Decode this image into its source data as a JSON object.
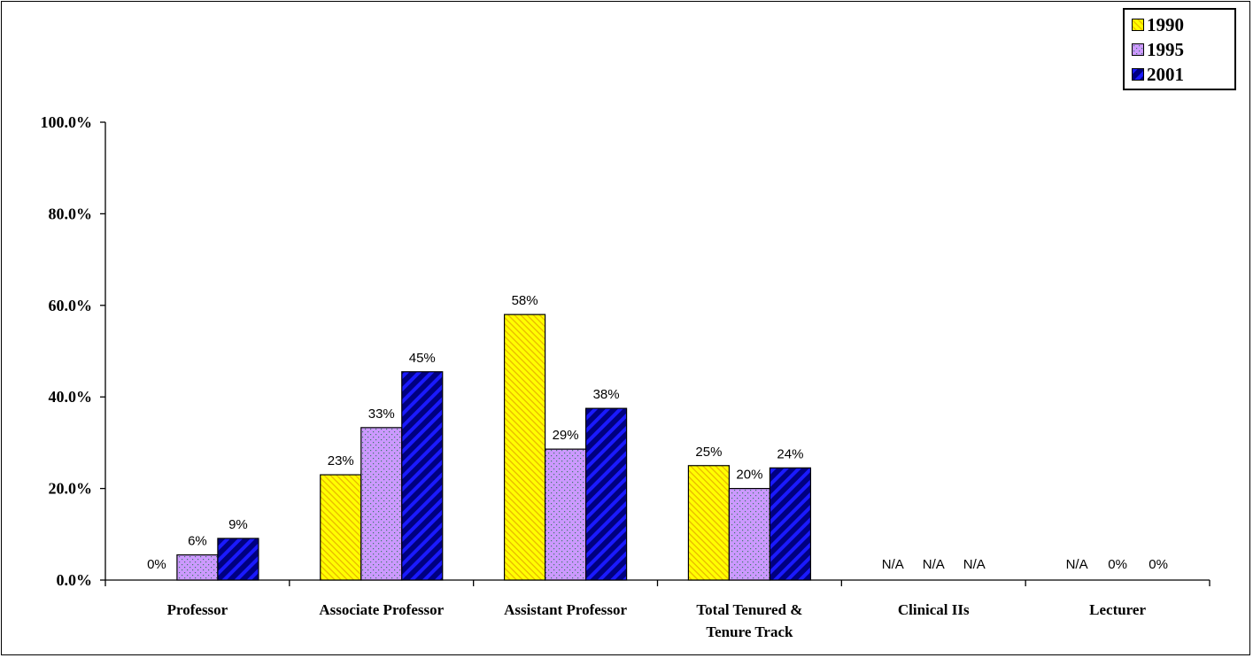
{
  "chart_data": {
    "type": "bar",
    "categories": [
      [
        "Professor"
      ],
      [
        "Associate Professor"
      ],
      [
        "Assistant Professor"
      ],
      [
        "Total Tenured &",
        "Tenure Track"
      ],
      [
        "Clinical IIs"
      ],
      [
        "Lecturer"
      ]
    ],
    "series": [
      {
        "name": "1990",
        "color": "#ffff00",
        "hatch": "#e8b800",
        "pattern": "diagonal-light",
        "values": [
          0,
          23,
          58,
          25,
          null,
          null
        ],
        "labels": [
          "0%",
          "23%",
          "58%",
          "25%",
          "N/A",
          "N/A"
        ]
      },
      {
        "name": "1995",
        "color": "#cc99ff",
        "hatch": "#3d7a6a",
        "pattern": "dots",
        "values": [
          5.5,
          33.3,
          28.6,
          20,
          null,
          0
        ],
        "labels": [
          "6%",
          "33%",
          "29%",
          "20%",
          "N/A",
          "0%"
        ]
      },
      {
        "name": "2001",
        "color": "#000080",
        "hatch": "#1a1aff",
        "pattern": "diagonal-wide",
        "values": [
          9.1,
          45.5,
          37.5,
          24.5,
          null,
          0
        ],
        "labels": [
          "9%",
          "45%",
          "38%",
          "24%",
          "N/A",
          "0%"
        ]
      }
    ],
    "y_ticks": [
      "0.0%",
      "20.0%",
      "40.0%",
      "60.0%",
      "80.0%",
      "100.0%"
    ],
    "ylim": [
      0,
      100
    ],
    "legend_position": "top-right",
    "grid": false
  }
}
